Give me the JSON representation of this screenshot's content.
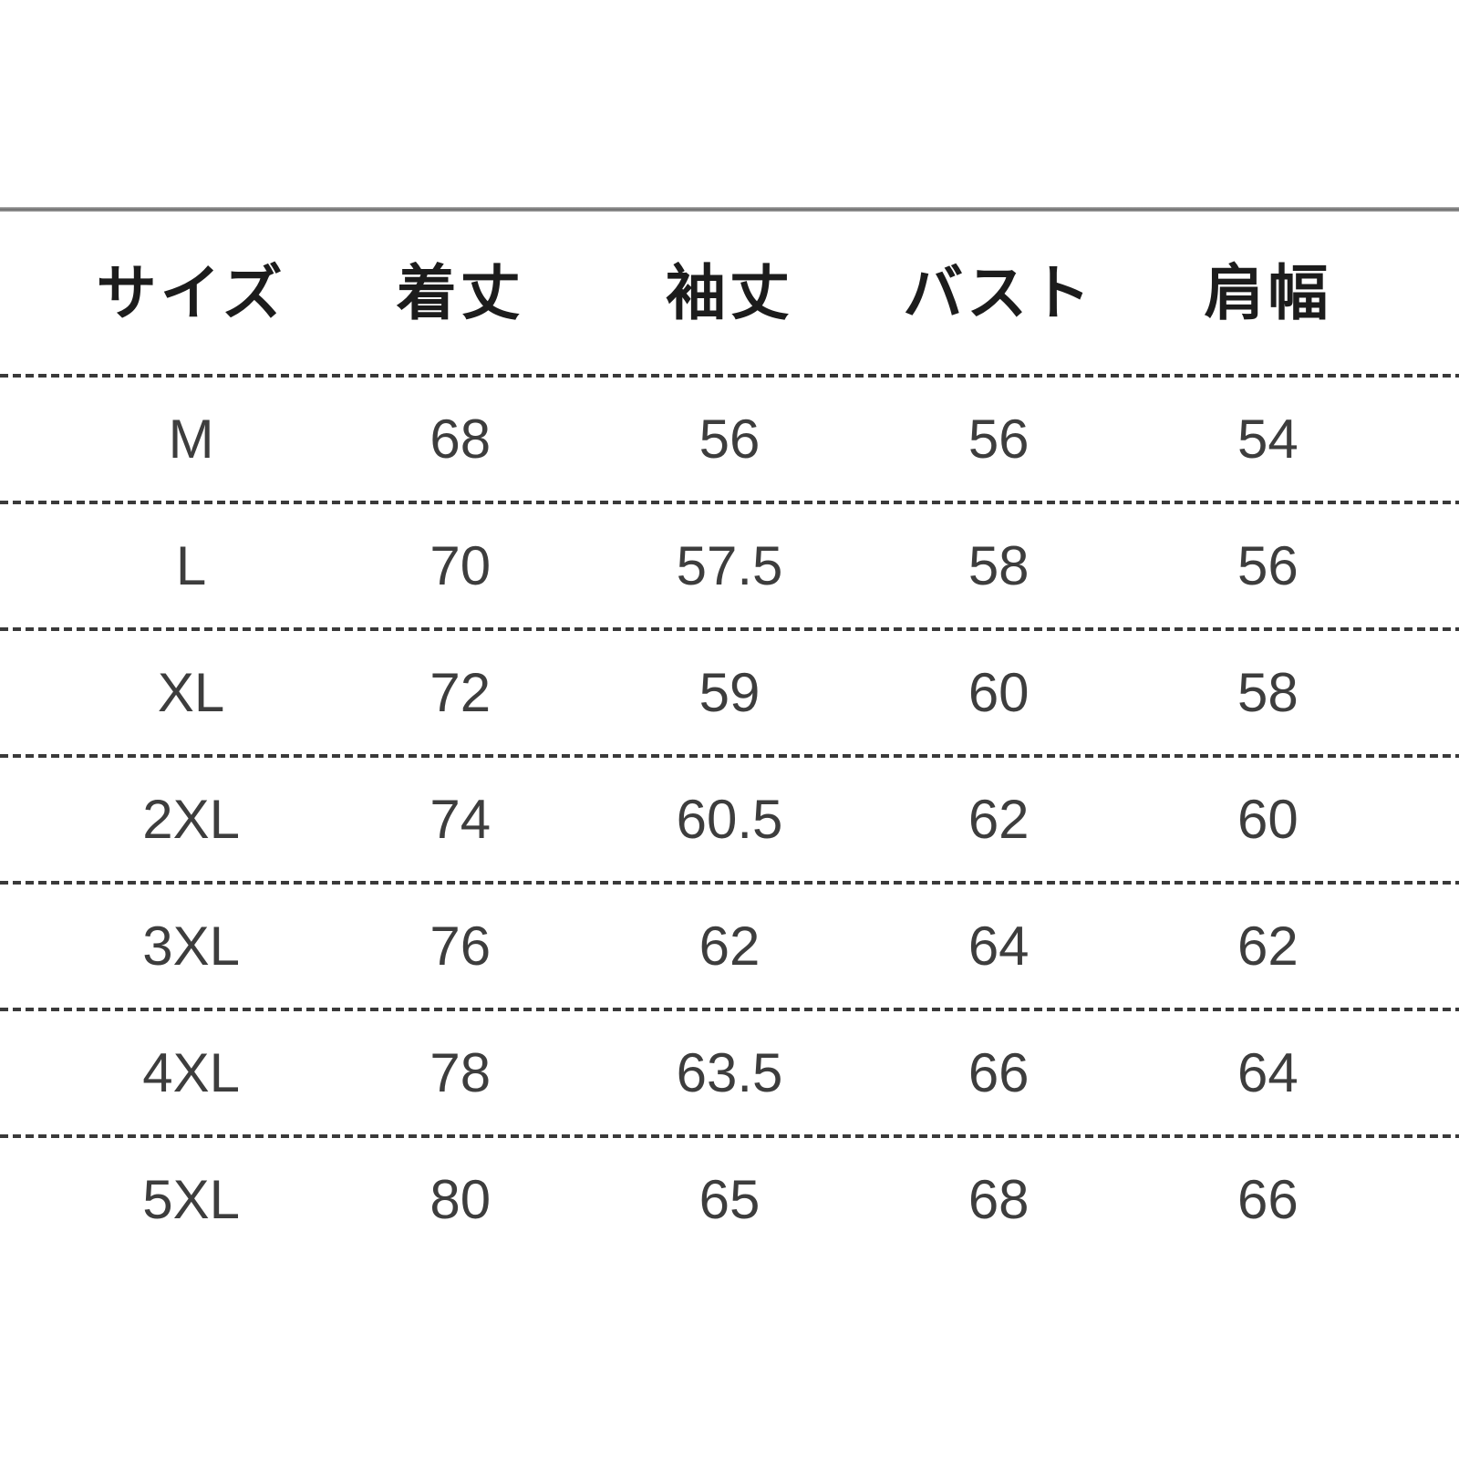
{
  "chart_data": {
    "type": "table",
    "title": "",
    "columns": [
      "サイズ",
      "着丈",
      "袖丈",
      "バスト",
      "肩幅"
    ],
    "rows": [
      [
        "M",
        "68",
        "56",
        "56",
        "54"
      ],
      [
        "L",
        "70",
        "57.5",
        "58",
        "56"
      ],
      [
        "XL",
        "72",
        "59",
        "60",
        "58"
      ],
      [
        "2XL",
        "74",
        "60.5",
        "62",
        "60"
      ],
      [
        "3XL",
        "76",
        "62",
        "64",
        "62"
      ],
      [
        "4XL",
        "78",
        "63.5",
        "66",
        "64"
      ],
      [
        "5XL",
        "80",
        "65",
        "68",
        "66"
      ]
    ]
  },
  "table": {
    "headers": [
      "サイズ",
      "着丈",
      "袖丈",
      "バスト",
      "肩幅"
    ],
    "rows": [
      [
        "M",
        "68",
        "56",
        "56",
        "54"
      ],
      [
        "L",
        "70",
        "57.5",
        "58",
        "56"
      ],
      [
        "XL",
        "72",
        "59",
        "60",
        "58"
      ],
      [
        "2XL",
        "74",
        "60.5",
        "62",
        "60"
      ],
      [
        "3XL",
        "76",
        "62",
        "64",
        "62"
      ],
      [
        "4XL",
        "78",
        "63.5",
        "66",
        "64"
      ],
      [
        "5XL",
        "80",
        "65",
        "68",
        "66"
      ]
    ]
  },
  "colors": {
    "background": "#ffffff",
    "header_text": "#1c1c1c",
    "cell_text": "#3d3d3d",
    "solid_line": "#7e7e7e",
    "dashed_line": "#3a3a3a"
  }
}
